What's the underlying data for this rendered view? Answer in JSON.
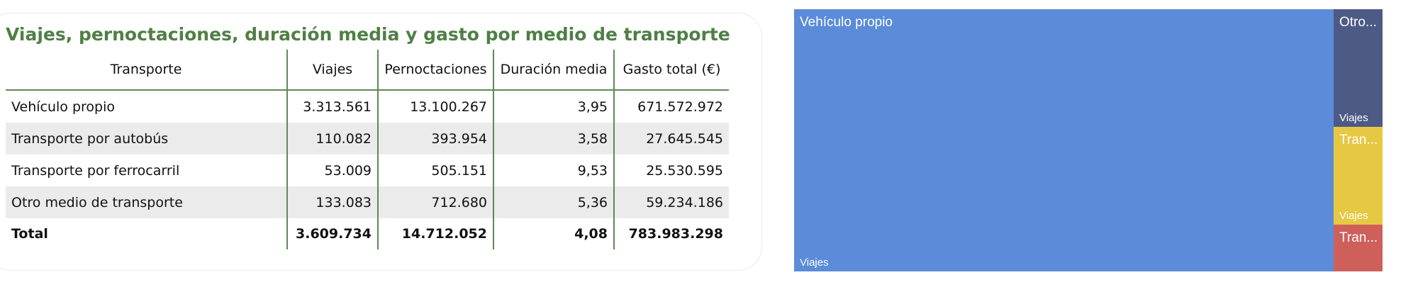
{
  "title": "Viajes, pernoctaciones, duración media y gasto por medio de transporte",
  "table": {
    "headers": [
      "Transporte",
      "Viajes",
      "Pernoctaciones",
      "Duración media",
      "Gasto total (€)"
    ],
    "rows": [
      [
        "Vehículo propio",
        "3.313.561",
        "13.100.267",
        "3,95",
        "671.572.972"
      ],
      [
        "Transporte por autobús",
        "110.082",
        "393.954",
        "3,58",
        "27.645.545"
      ],
      [
        "Transporte por ferrocarril",
        "53.009",
        "505.151",
        "9,53",
        "25.530.595"
      ],
      [
        "Otro medio de transporte",
        "133.083",
        "712.680",
        "5,36",
        "59.234.186"
      ]
    ],
    "total": [
      "Total",
      "3.609.734",
      "14.712.052",
      "4,08",
      "783.983.298"
    ]
  },
  "treemap": {
    "measure": "Viajes",
    "tiles": [
      {
        "label": "Vehículo propio",
        "color": "#5b8bd9"
      },
      {
        "label": "Otro...",
        "color": "#4d5a86"
      },
      {
        "label": "Tran...",
        "color": "#e7c842"
      },
      {
        "label": "Tran...",
        "color": "#cf5f5b"
      }
    ]
  }
}
